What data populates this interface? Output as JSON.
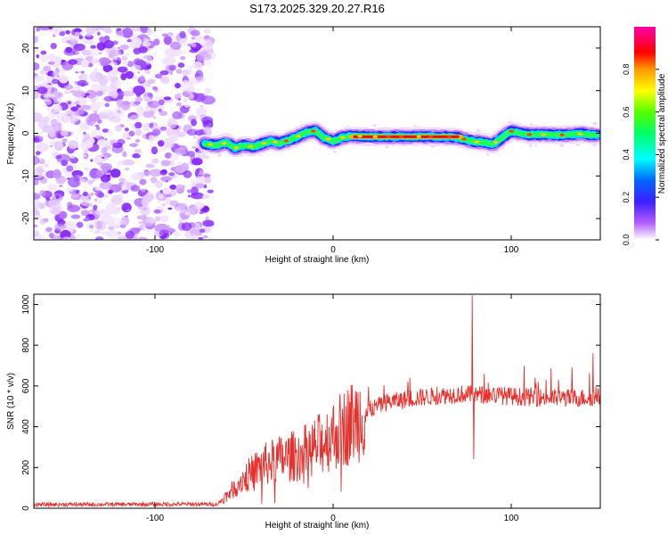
{
  "title": "S173.2025.329.20.27.R16",
  "chart_data": [
    {
      "type": "heatmap",
      "panel": "top",
      "xlabel": "Height of straight line (km)",
      "ylabel": "Frequency (Hz)",
      "xlim": [
        -168,
        150
      ],
      "ylim": [
        -25,
        25
      ],
      "xticks": [
        -100,
        0,
        100
      ],
      "yticks": [
        -20,
        -10,
        0,
        10,
        20
      ],
      "noise_region_x": [
        -168,
        -70
      ],
      "signal_track": {
        "x": [
          -72,
          -65,
          -60,
          -55,
          -50,
          -45,
          -40,
          -35,
          -30,
          -25,
          -20,
          -15,
          -10,
          -5,
          0,
          5,
          10,
          20,
          30,
          40,
          50,
          60,
          70,
          75,
          80,
          85,
          90,
          95,
          100,
          110,
          120,
          130,
          140,
          148
        ],
        "y": [
          -2.5,
          -2.8,
          -2.2,
          -3.5,
          -2.8,
          -3.2,
          -2.5,
          -1.8,
          -2.3,
          -1.6,
          -0.8,
          0.2,
          0.6,
          -1.0,
          -1.8,
          -1.0,
          -0.6,
          -0.8,
          -0.8,
          -0.8,
          -0.8,
          -0.8,
          -1.0,
          -1.5,
          -2.0,
          -2.2,
          -2.5,
          -1.0,
          0.5,
          -0.3,
          -0.3,
          -0.4,
          -0.1,
          -0.5
        ],
        "peak_x_range": [
          10,
          72
        ]
      },
      "colorbar": {
        "label": "Normalized spectral amplitude",
        "ticks": [
          0.0,
          0.2,
          0.4,
          0.6,
          0.8
        ],
        "tick_labels": [
          "0.0",
          "0.2",
          "0.4",
          "0.6",
          "0.8"
        ],
        "range": [
          0,
          1
        ]
      }
    },
    {
      "type": "line",
      "panel": "bottom",
      "xlabel": "Height of straight line (km)",
      "ylabel": "SNR (10 * v/v)",
      "xlim": [
        -168,
        150
      ],
      "ylim": [
        0,
        1050
      ],
      "xticks": [
        -100,
        0,
        100
      ],
      "yticks": [
        0,
        200,
        400,
        600,
        800,
        1000
      ],
      "series": [
        {
          "name": "SNR",
          "color": "#e8302c",
          "trend": {
            "x": [
              -168,
              -65,
              -60,
              -50,
              -40,
              -30,
              -20,
              -10,
              0,
              10,
              20,
              30,
              50,
              70,
              90,
              110,
              130,
              150
            ],
            "y": [
              18,
              20,
              60,
              150,
              210,
              240,
              260,
              300,
              360,
              420,
              480,
              520,
              545,
              560,
              555,
              545,
              540,
              545
            ]
          },
          "spikes": [
            {
              "x": 78,
              "y": 1045
            },
            {
              "x": 79,
              "y": 240
            },
            {
              "x": 146,
              "y": 760
            },
            {
              "x": -40,
              "y": 20
            },
            {
              "x": 12,
              "y": 490
            }
          ]
        }
      ]
    }
  ]
}
